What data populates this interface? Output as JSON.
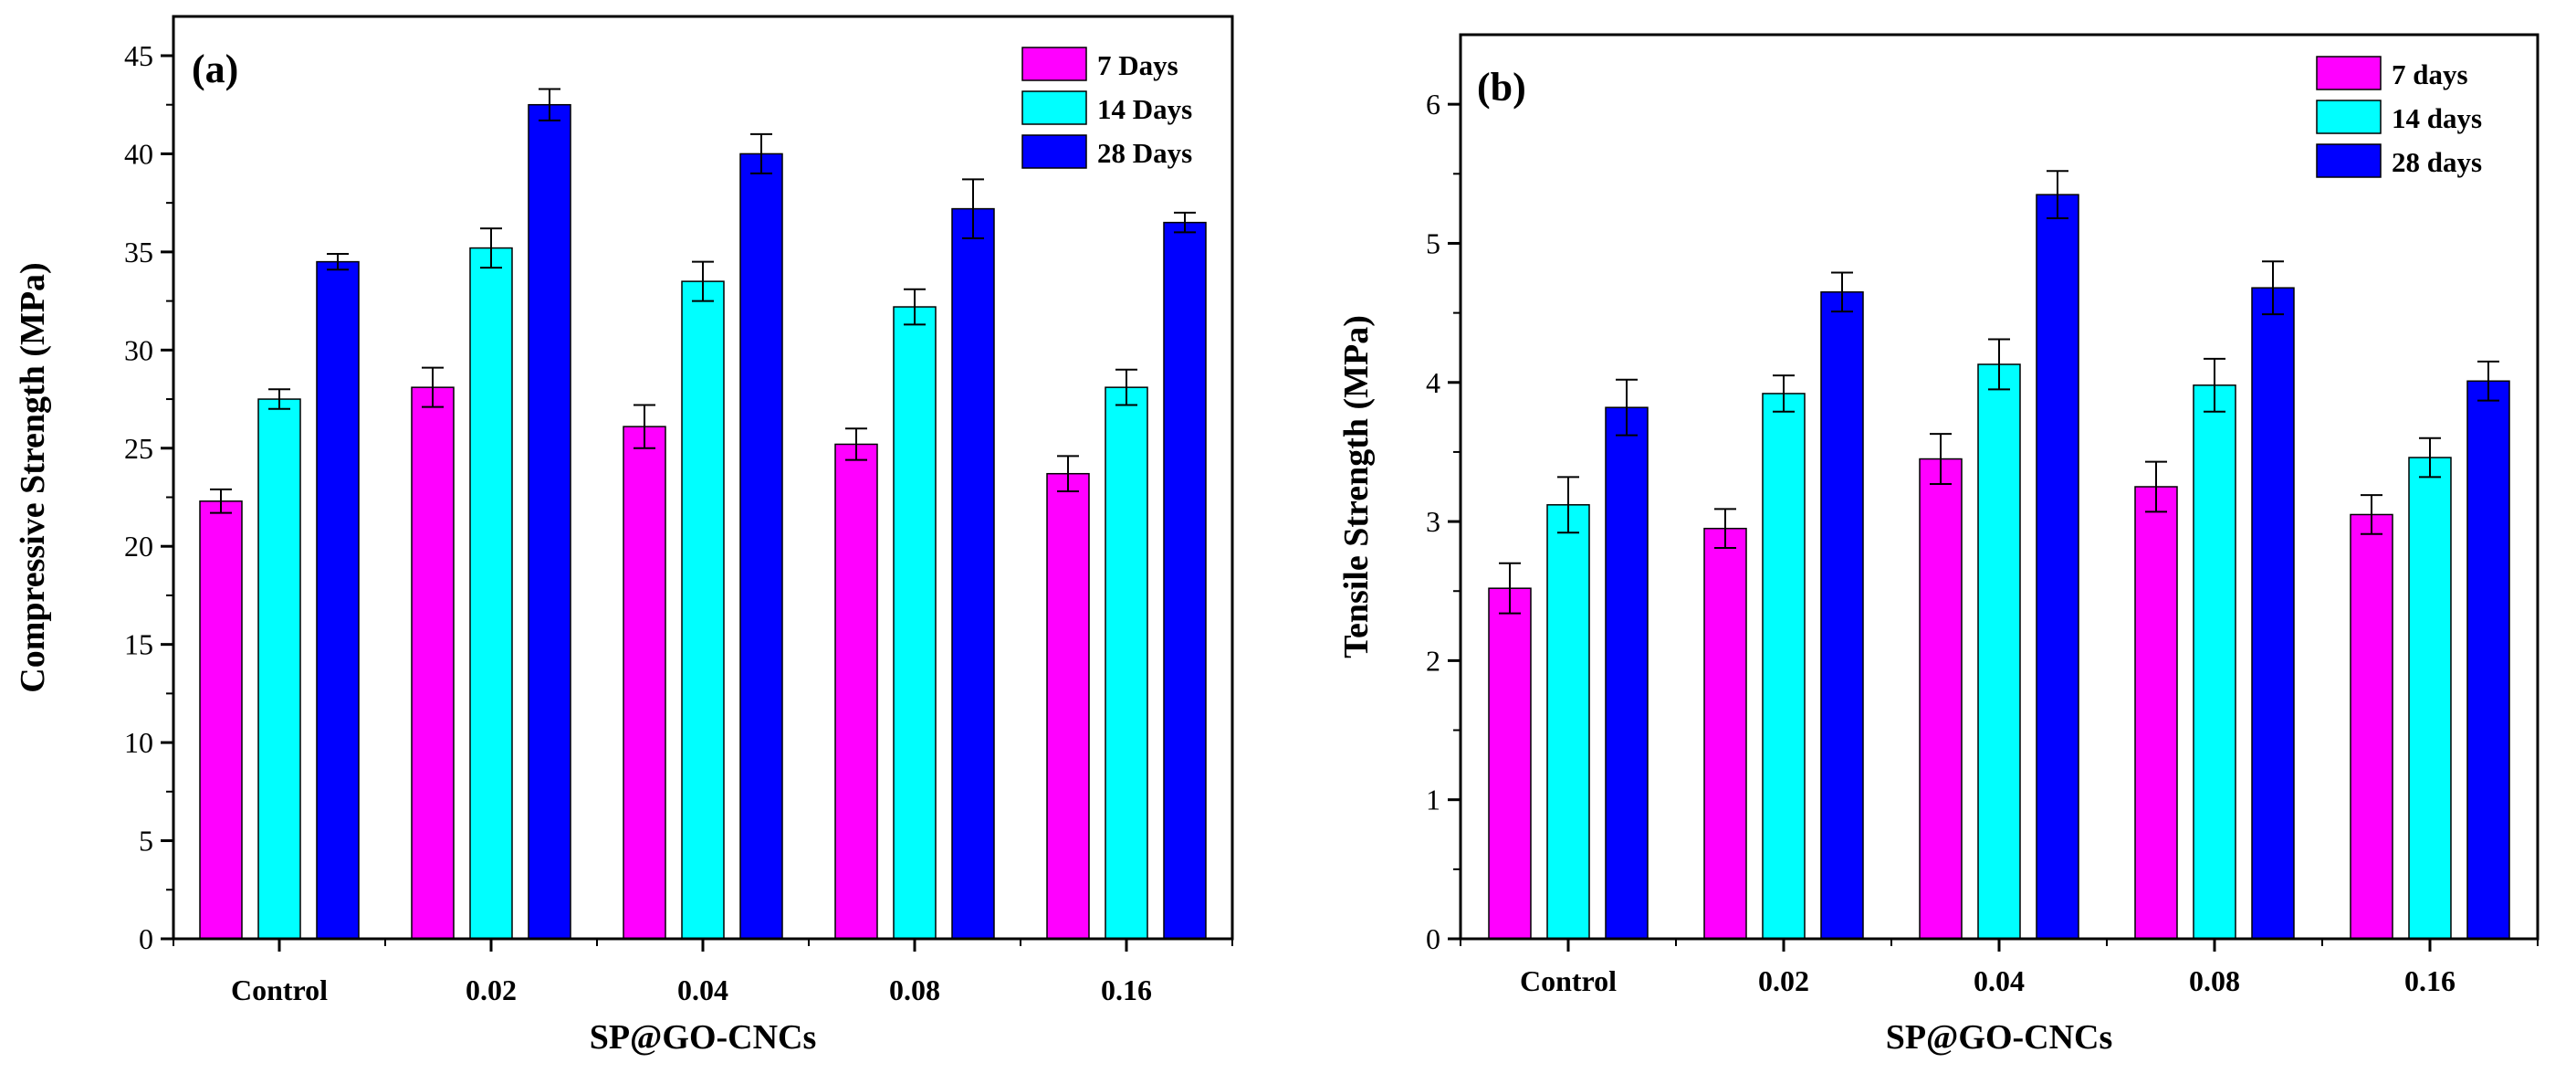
{
  "chart_data": [
    {
      "type": "bar",
      "panel_label": "(a)",
      "categories": [
        "Control",
        "0.02",
        "0.04",
        "0.08",
        "0.16"
      ],
      "xlabel": "SP@GO-CNCs",
      "ylabel": "Compressive Strength (MPa)",
      "ylim": [
        0,
        47
      ],
      "yticks": [
        0,
        5,
        10,
        15,
        20,
        25,
        30,
        35,
        40,
        45
      ],
      "legend_position": "top-right",
      "series": [
        {
          "name": "7 Days",
          "color": "#ff00ff",
          "values": [
            22.3,
            28.1,
            26.1,
            25.2,
            23.7
          ],
          "errors": [
            0.6,
            1.0,
            1.1,
            0.8,
            0.9
          ]
        },
        {
          "name": "14 Days",
          "color": "#00ffff",
          "values": [
            27.5,
            35.2,
            33.5,
            32.2,
            28.1
          ],
          "errors": [
            0.5,
            1.0,
            1.0,
            0.9,
            0.9
          ]
        },
        {
          "name": "28 Days",
          "color": "#0000ff",
          "values": [
            34.5,
            42.5,
            40.0,
            37.2,
            36.5
          ],
          "errors": [
            0.4,
            0.8,
            1.0,
            1.5,
            0.5
          ]
        }
      ]
    },
    {
      "type": "bar",
      "panel_label": "(b)",
      "categories": [
        "Control",
        "0.02",
        "0.04",
        "0.08",
        "0.16"
      ],
      "xlabel": "SP@GO-CNCs",
      "ylabel": "Tensile Strength (MPa)",
      "ylim": [
        0,
        6.5
      ],
      "yticks": [
        0,
        1,
        2,
        3,
        4,
        5,
        6
      ],
      "legend_position": "top-right",
      "series": [
        {
          "name": "7 days",
          "color": "#ff00ff",
          "values": [
            2.52,
            2.95,
            3.45,
            3.25,
            3.05
          ],
          "errors": [
            0.18,
            0.14,
            0.18,
            0.18,
            0.14
          ]
        },
        {
          "name": "14 days",
          "color": "#00ffff",
          "values": [
            3.12,
            3.92,
            4.13,
            3.98,
            3.46
          ],
          "errors": [
            0.2,
            0.13,
            0.18,
            0.19,
            0.14
          ]
        },
        {
          "name": "28 days",
          "color": "#0000ff",
          "values": [
            3.82,
            4.65,
            5.35,
            4.68,
            4.01
          ],
          "errors": [
            0.2,
            0.14,
            0.17,
            0.19,
            0.14
          ]
        }
      ]
    }
  ]
}
